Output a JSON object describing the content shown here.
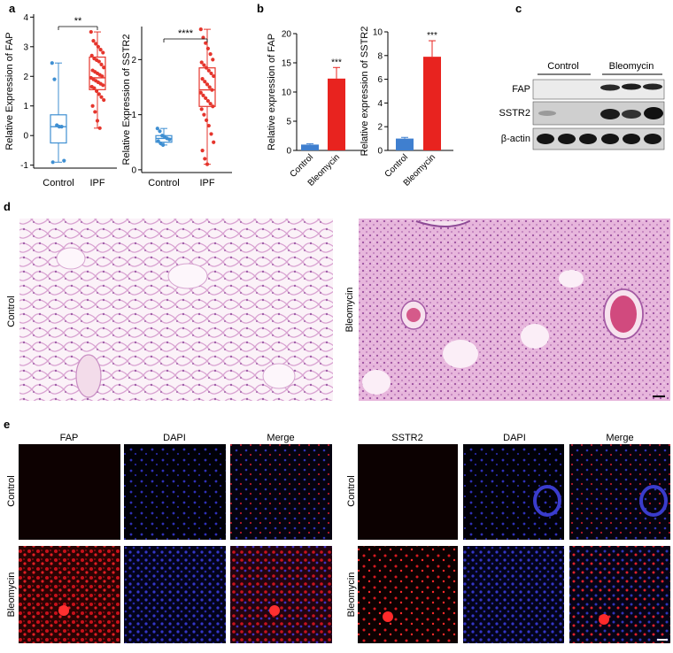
{
  "panels": {
    "a": "a",
    "b": "b",
    "c": "c",
    "d": "d",
    "e": "e"
  },
  "colors": {
    "control_blue": "#3f8fd2",
    "ipf_red": "#e5352c",
    "bar_blue": "#3f7fcf",
    "bar_red": "#e8231f",
    "he_pink": "#e8bfe0",
    "fluor_red": "#e0141e",
    "fluor_blue": "#3a3ccc"
  },
  "chart_data": [
    {
      "type": "box",
      "ylabel": "Relative Expression of FAP",
      "categories": [
        "Control",
        "IPF"
      ],
      "yticks": [
        "-1",
        "0",
        "1",
        "2",
        "3",
        "4"
      ],
      "ylim": [
        -1.1,
        4.1
      ],
      "significance": "**",
      "boxes": [
        {
          "name": "Control",
          "min": -0.9,
          "q1": -0.25,
          "median": 0.3,
          "q3": 0.7,
          "max": 2.45
        },
        {
          "name": "IPF",
          "min": 0.25,
          "q1": 1.55,
          "median": 1.95,
          "q3": 2.65,
          "max": 3.5
        }
      ],
      "points": {
        "Control": [
          2.45,
          1.9,
          0.35,
          0.3,
          0.3,
          -0.85,
          -0.9
        ],
        "IPF": [
          3.5,
          3.2,
          3.1,
          3.0,
          2.9,
          2.8,
          2.7,
          2.6,
          2.55,
          2.5,
          2.4,
          2.3,
          2.2,
          2.15,
          2.1,
          2.05,
          2.0,
          1.95,
          1.9,
          1.85,
          1.8,
          1.75,
          1.7,
          1.65,
          1.6,
          1.5,
          1.4,
          1.3,
          1.2,
          1.0,
          0.8,
          0.5,
          0.25
        ]
      }
    },
    {
      "type": "box",
      "ylabel": "Relative Expression of SSTR2",
      "categories": [
        "Control",
        "IPF"
      ],
      "yticks": [
        "0",
        "1",
        "2"
      ],
      "ylim": [
        -0.05,
        2.6
      ],
      "significance": "****",
      "boxes": [
        {
          "name": "Control",
          "min": 0.45,
          "q1": 0.5,
          "median": 0.57,
          "q3": 0.62,
          "max": 0.75
        },
        {
          "name": "IPF",
          "min": 0.1,
          "q1": 1.15,
          "median": 1.45,
          "q3": 1.85,
          "max": 2.55
        }
      ],
      "points": {
        "Control": [
          0.75,
          0.7,
          0.62,
          0.6,
          0.57,
          0.55,
          0.52,
          0.48,
          0.45
        ],
        "IPF": [
          2.55,
          2.4,
          2.3,
          2.2,
          2.1,
          2.0,
          1.95,
          1.9,
          1.85,
          1.8,
          1.75,
          1.7,
          1.65,
          1.6,
          1.55,
          1.5,
          1.45,
          1.4,
          1.35,
          1.3,
          1.25,
          1.2,
          1.15,
          1.1,
          1.0,
          0.9,
          0.8,
          0.65,
          0.5,
          0.35,
          0.2,
          0.1
        ]
      }
    },
    {
      "type": "bar",
      "ylabel": "Relative expression of FAP",
      "categories": [
        "Control",
        "Bleomycin"
      ],
      "values": [
        1.0,
        12.3
      ],
      "errors": [
        0.15,
        1.9
      ],
      "yticks": [
        "0",
        "5",
        "10",
        "15",
        "20"
      ],
      "ylim": [
        0,
        20
      ],
      "significance": "***"
    },
    {
      "type": "bar",
      "ylabel": "Relative expression of SSTR2",
      "categories": [
        "Control",
        "Bleomycin"
      ],
      "values": [
        1.0,
        7.9
      ],
      "errors": [
        0.1,
        1.35
      ],
      "yticks": [
        "0",
        "2",
        "4",
        "6",
        "8",
        "10"
      ],
      "ylim": [
        0,
        10
      ],
      "significance": "***"
    }
  ],
  "blot": {
    "groups": [
      "Control",
      "Bleomycin"
    ],
    "rows": [
      "FAP",
      "SSTR2",
      "β-actin"
    ]
  },
  "histology": {
    "left_label": "Control",
    "right_label": "Bleomycin"
  },
  "fluorescence": {
    "left_columns": [
      "FAP",
      "DAPI",
      "Merge"
    ],
    "right_columns": [
      "SSTR2",
      "DAPI",
      "Merge"
    ],
    "rows": [
      "Control",
      "Bleomycin"
    ]
  }
}
